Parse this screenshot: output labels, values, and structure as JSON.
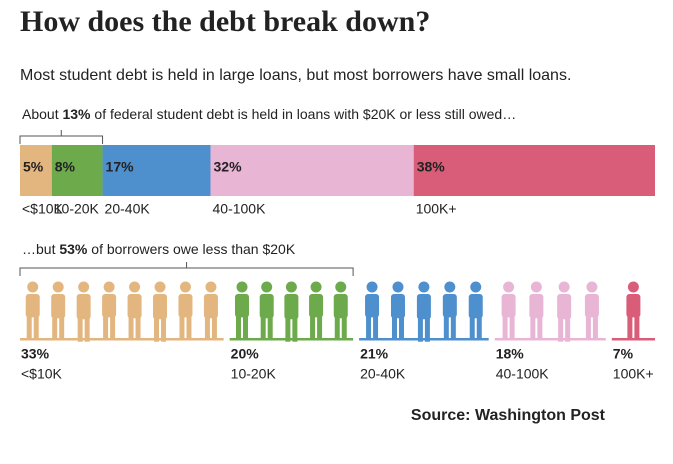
{
  "title": "How does the debt break down?",
  "subtitle": "Most student debt is held in large loans, but most borrowers have small loans.",
  "source": "Source:  Washington Post",
  "chart_data": [
    {
      "type": "stacked-bar",
      "annotation": {
        "before": "About ",
        "bold": "13%",
        "after": " of federal student debt is held in loans with $20K or less still owed…"
      },
      "categories": [
        "<$10K",
        "10-20K",
        "20-40K",
        "40-100K",
        "100K+"
      ],
      "values": [
        5,
        8,
        17,
        32,
        38
      ],
      "value_labels": [
        "5%",
        "8%",
        "17%",
        "32%",
        "38%"
      ],
      "colors": [
        "#e3b67f",
        "#6caa4c",
        "#4e8fce",
        "#e9b5d5",
        "#d95c78"
      ]
    },
    {
      "type": "pictogram",
      "annotation": {
        "before": "…but ",
        "bold": "53%",
        "after": " of borrowers owe less than $20K"
      },
      "categories": [
        "<$10K",
        "10-20K",
        "20-40K",
        "40-100K",
        "100K+"
      ],
      "values": [
        33,
        20,
        21,
        18,
        7
      ],
      "value_labels": [
        "33%",
        "20%",
        "21%",
        "18%",
        "7%"
      ],
      "colors": [
        "#e3b67f",
        "#6caa4c",
        "#4e8fce",
        "#e9b5d5",
        "#d95c78"
      ]
    }
  ]
}
